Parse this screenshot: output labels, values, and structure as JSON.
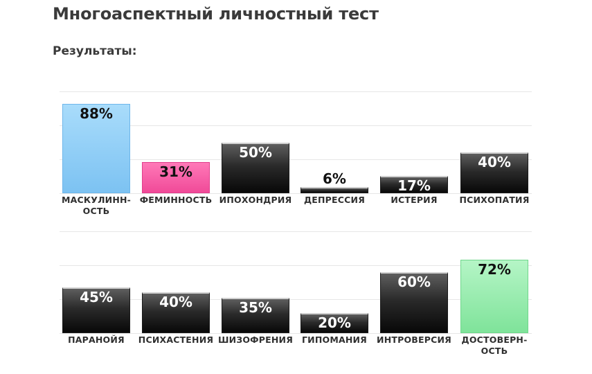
{
  "page": {
    "title": "Многоаспектный личностный тест",
    "results_label": "Результаты:"
  },
  "colors": {
    "dark_bar": "#1a1a1a",
    "blue_bar": "#8fcdf6",
    "pink_bar": "#f4509e",
    "green_bar": "#92ebab",
    "grid": "#e6e6e6"
  },
  "chart_data": [
    {
      "type": "bar",
      "ylim": [
        0,
        100
      ],
      "grid": true,
      "categories": [
        "МАСКУЛИНН-ОСТЬ",
        "ФЕМИННОСТЬ",
        "ИПОХОНДРИЯ",
        "ДЕПРЕССИЯ",
        "ИСТЕРИЯ",
        "ПСИХОПАТИЯ"
      ],
      "category_lines": [
        [
          "МАСКУЛИНН-",
          "ОСТЬ"
        ],
        [
          "ФЕМИННОСТЬ"
        ],
        [
          "ИПОХОНДРИЯ"
        ],
        [
          "ДЕПРЕССИЯ"
        ],
        [
          "ИСТЕРИЯ"
        ],
        [
          "ПСИХОПАТИЯ"
        ]
      ],
      "values": [
        88,
        31,
        50,
        6,
        17,
        40
      ],
      "value_labels": [
        "88%",
        "31%",
        "50%",
        "6%",
        "17%",
        "40%"
      ],
      "styles": [
        "blue",
        "pink",
        "dark",
        "dark",
        "dark",
        "dark"
      ]
    },
    {
      "type": "bar",
      "ylim": [
        0,
        100
      ],
      "grid": true,
      "categories": [
        "ПАРАНОЙЯ",
        "ПСИХАСТЕНИЯ",
        "ШИЗОФРЕНИЯ",
        "ГИПОМАНИЯ",
        "ИНТРОВЕРСИЯ",
        "ДОСТОВЕРН-ОСТЬ"
      ],
      "category_lines": [
        [
          "ПАРАНОЙЯ"
        ],
        [
          "ПСИХАСТЕНИЯ"
        ],
        [
          "ШИЗОФРЕНИЯ"
        ],
        [
          "ГИПОМАНИЯ"
        ],
        [
          "ИНТРОВЕРСИЯ"
        ],
        [
          "ДОСТОВЕРН-",
          "ОСТЬ"
        ]
      ],
      "values": [
        45,
        40,
        35,
        20,
        60,
        72
      ],
      "value_labels": [
        "45%",
        "40%",
        "35%",
        "20%",
        "60%",
        "72%"
      ],
      "styles": [
        "dark",
        "dark",
        "dark",
        "dark",
        "dark",
        "green"
      ]
    }
  ]
}
